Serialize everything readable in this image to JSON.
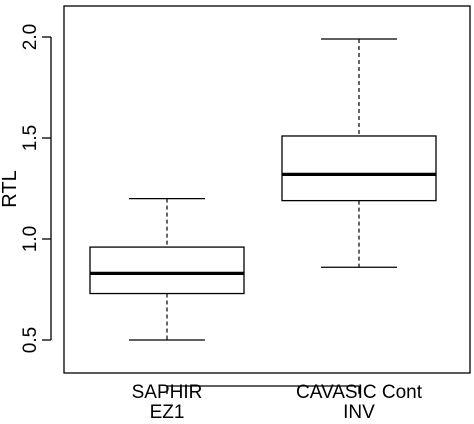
{
  "chart_data": {
    "type": "boxplot",
    "title": "",
    "xlabel": "",
    "ylabel": "RTL",
    "ylim": [
      0.4,
      2.15
    ],
    "yticks": [
      "0.5",
      "1.0",
      "1.5",
      "2.0"
    ],
    "ytick_values": [
      0.5,
      1.0,
      1.5,
      2.0
    ],
    "grid": false,
    "legend": "none",
    "categories": [
      {
        "line1": "SAPHIR",
        "line2": "EZ1"
      },
      {
        "line1": "CAVASIC Cont",
        "line2": "INV"
      }
    ],
    "boxes": [
      {
        "whisker_low": 0.5,
        "q1": 0.73,
        "median": 0.83,
        "q3": 0.96,
        "whisker_high": 1.2
      },
      {
        "whisker_low": 0.86,
        "q1": 1.19,
        "median": 1.32,
        "q3": 1.51,
        "whisker_high": 1.99
      }
    ]
  }
}
